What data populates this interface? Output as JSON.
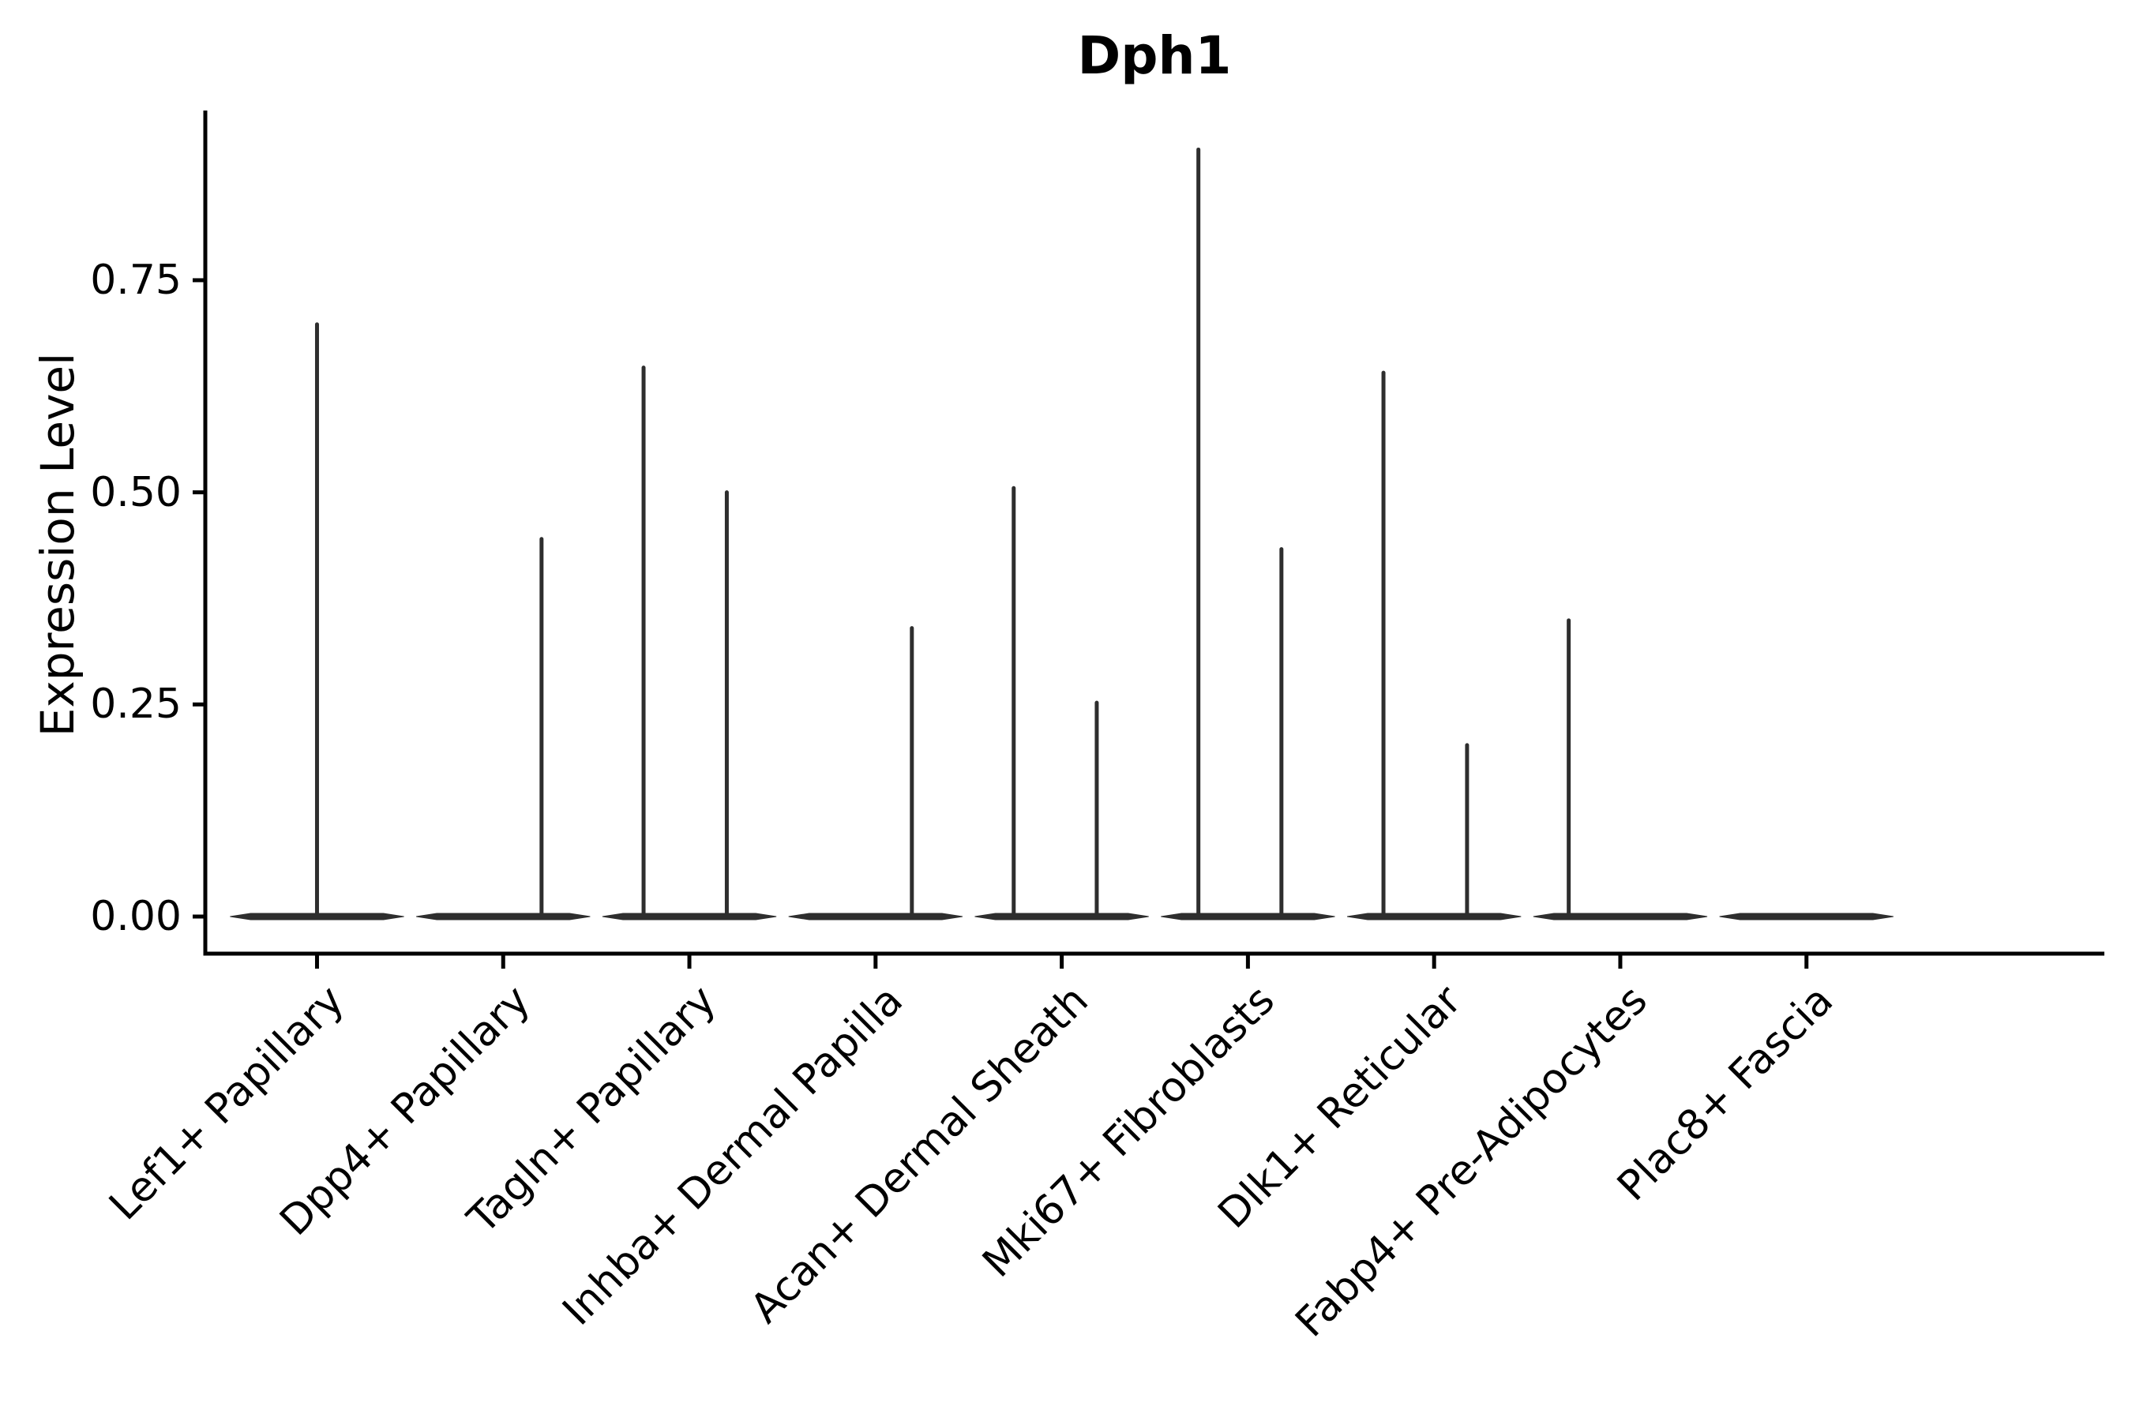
{
  "figure": {
    "background": "#ffffff",
    "axis_color": "#000000",
    "violin_color": "#2e2e2e"
  },
  "chart_data": {
    "type": "violin",
    "title": "Dph1",
    "xlabel": "",
    "ylabel": "Expression Level",
    "ylim": [
      0,
      0.95
    ],
    "ytick_values": [
      0,
      0.25,
      0.5,
      0.75
    ],
    "ytick_labels": [
      "0.00",
      "0.25",
      "0.50",
      "0.75"
    ],
    "grid": false,
    "legend": null,
    "description": "Violin plot of Dph1 expression; each violin is collapsed flat at 0 with thin vertical density spikes reaching the maximum expressing cells.",
    "body_halfwidth_frac": 0.467,
    "categories": [
      "Lef1+ Papillary",
      "Dpp4+ Papillary",
      "Tagln+ Papillary",
      "Inhba+ Dermal Papilla",
      "Acan+ Dermal Sheath",
      "Mki67+ Fibroblasts",
      "Dlk1+ Reticular",
      "Fabp4+ Pre-Adipocytes",
      "Plac8+ Fascia"
    ],
    "series": [
      {
        "category": "Lef1+ Papillary",
        "baseline_value": 0,
        "spikes": [
          {
            "x_offset_frac": 0.0,
            "value": 0.698
          }
        ]
      },
      {
        "category": "Dpp4+ Papillary",
        "baseline_value": 0,
        "spikes": [
          {
            "x_offset_frac": 0.206,
            "value": 0.445
          }
        ]
      },
      {
        "category": "Tagln+ Papillary",
        "baseline_value": 0,
        "spikes": [
          {
            "x_offset_frac": -0.246,
            "value": 0.647
          },
          {
            "x_offset_frac": 0.201,
            "value": 0.5
          }
        ]
      },
      {
        "category": "Inhba+ Dermal Papilla",
        "baseline_value": 0,
        "spikes": [
          {
            "x_offset_frac": 0.195,
            "value": 0.34
          }
        ]
      },
      {
        "category": "Acan+ Dermal Sheath",
        "baseline_value": 0,
        "spikes": [
          {
            "x_offset_frac": -0.258,
            "value": 0.505
          },
          {
            "x_offset_frac": 0.188,
            "value": 0.252
          }
        ]
      },
      {
        "category": "Mki67+ Fibroblasts",
        "baseline_value": 0,
        "spikes": [
          {
            "x_offset_frac": -0.266,
            "value": 0.904
          },
          {
            "x_offset_frac": 0.18,
            "value": 0.433
          }
        ]
      },
      {
        "category": "Dlk1+ Reticular",
        "baseline_value": 0,
        "spikes": [
          {
            "x_offset_frac": -0.272,
            "value": 0.641
          },
          {
            "x_offset_frac": 0.177,
            "value": 0.202
          }
        ]
      },
      {
        "category": "Fabp4+ Pre-Adipocytes",
        "baseline_value": 0,
        "spikes": [
          {
            "x_offset_frac": -0.277,
            "value": 0.349
          }
        ]
      },
      {
        "category": "Plac8+ Fascia",
        "baseline_value": 0,
        "spikes": []
      }
    ]
  }
}
